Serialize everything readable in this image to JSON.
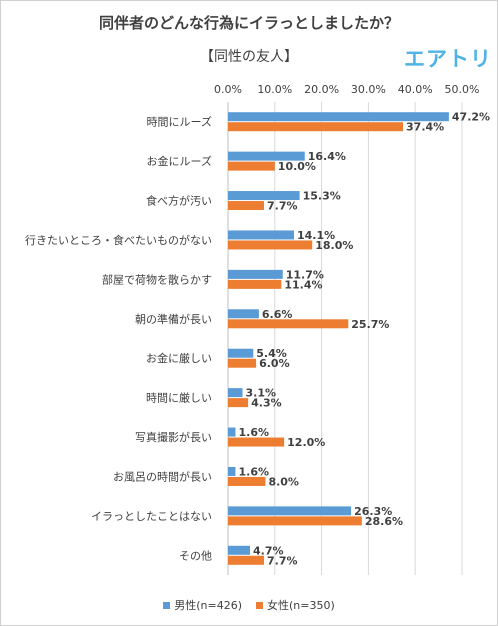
{
  "chart_data": {
    "type": "bar",
    "orientation": "horizontal",
    "title": "同伴者のどんな行為にイラっとしましたか？",
    "subtitle": "【同性の友人】",
    "logo": "エアトリ",
    "categories": [
      "時間にルーズ",
      "お金にルーズ",
      "食べ方が汚い",
      "行きたいところ・食べたいものがない",
      "部屋で荷物を散らかす",
      "朝の準備が長い",
      "お金に厳しい",
      "時間に厳しい",
      "写真撮影が長い",
      "お風呂の時間が長い",
      "イラっとしたことはない",
      "その他"
    ],
    "series": [
      {
        "name": "男性(n=426)",
        "color": "#5b9bd5",
        "values": [
          47.2,
          16.4,
          15.3,
          14.1,
          11.7,
          6.6,
          5.4,
          3.1,
          1.6,
          1.6,
          26.3,
          4.7
        ],
        "labels": [
          "47.2%",
          "16.4%",
          "15.3%",
          "14.1%",
          "11.7%",
          "6.6%",
          "5.4%",
          "3.1%",
          "1.6%",
          "1.6%",
          "26.3%",
          "4.7%"
        ]
      },
      {
        "name": "女性(n=350)",
        "color": "#ed7d31",
        "values": [
          37.4,
          10.0,
          7.7,
          18.0,
          11.4,
          25.7,
          6.0,
          4.3,
          12.0,
          8.0,
          28.6,
          7.7
        ],
        "labels": [
          "37.4%",
          "10.0%",
          "7.7%",
          "18.0%",
          "11.4%",
          "25.7%",
          "6.0%",
          "4.3%",
          "12.0%",
          "8.0%",
          "28.6%",
          "7.7%"
        ]
      }
    ],
    "xlim": [
      0,
      50
    ],
    "xticks": [
      0,
      10,
      20,
      30,
      40,
      50
    ],
    "xtick_labels": [
      "0.0%",
      "10.0%",
      "20.0%",
      "30.0%",
      "40.0%",
      "50.0%"
    ],
    "tick_position": "top",
    "grid": true,
    "legend": "bottom"
  }
}
